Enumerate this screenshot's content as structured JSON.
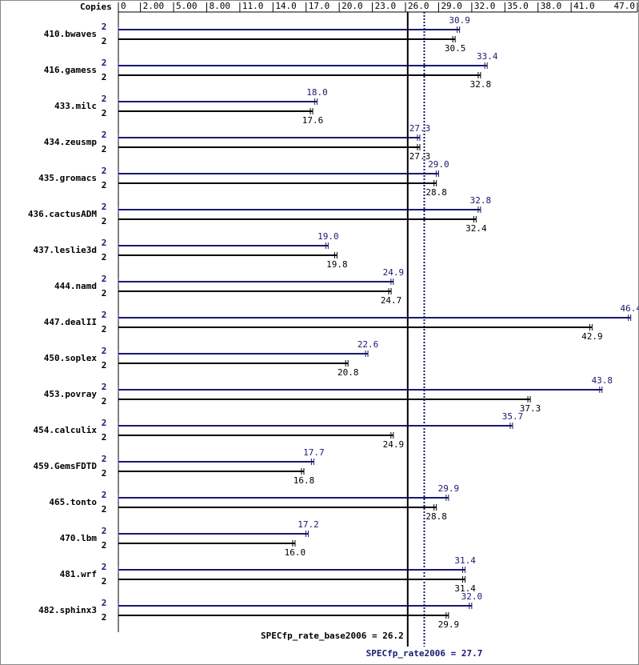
{
  "chart_data": {
    "type": "bar",
    "orientation": "horizontal",
    "copies_label": "Copies",
    "categories": [
      "410.bwaves",
      "416.gamess",
      "433.milc",
      "434.zeusmp",
      "435.gromacs",
      "436.cactusADM",
      "437.leslie3d",
      "444.namd",
      "447.dealII",
      "450.soplex",
      "453.povray",
      "454.calculix",
      "459.GemsFDTD",
      "465.tonto",
      "470.lbm",
      "481.wrf",
      "482.sphinx3"
    ],
    "series": [
      {
        "color": "#191970",
        "copies": [
          2,
          2,
          2,
          2,
          2,
          2,
          2,
          2,
          2,
          2,
          2,
          2,
          2,
          2,
          2,
          2,
          2
        ],
        "values": [
          30.9,
          33.4,
          18.0,
          27.3,
          29.0,
          32.8,
          19.0,
          24.9,
          46.4,
          22.6,
          43.8,
          35.7,
          17.7,
          29.9,
          17.2,
          31.4,
          32.0
        ],
        "value_labels": [
          "30.9",
          "33.4",
          "18.0",
          "27.3",
          "29.0",
          "32.8",
          "19.0",
          "24.9",
          "46.4",
          "22.6",
          "43.8",
          "35.7",
          "17.7",
          "29.9",
          "17.2",
          "31.4",
          "32.0"
        ]
      },
      {
        "color": "#000000",
        "copies": [
          2,
          2,
          2,
          2,
          2,
          2,
          2,
          2,
          2,
          2,
          2,
          2,
          2,
          2,
          2,
          2,
          2
        ],
        "values": [
          30.5,
          32.8,
          17.6,
          27.3,
          28.8,
          32.4,
          19.8,
          24.7,
          42.9,
          20.8,
          37.3,
          24.9,
          16.8,
          28.8,
          16.0,
          31.4,
          29.9
        ],
        "value_labels": [
          "30.5",
          "32.8",
          "17.6",
          "27.3",
          "28.8",
          "32.4",
          "19.8",
          "24.7",
          "42.9",
          "20.8",
          "37.3",
          "24.9",
          "16.8",
          "28.8",
          "16.0",
          "31.4",
          "29.9"
        ]
      }
    ],
    "xlim": [
      0,
      47.0
    ],
    "xticks": [
      0,
      {
        "value": 2,
        "label": "2.00"
      },
      {
        "value": 5,
        "label": "5.00"
      },
      {
        "value": 8,
        "label": "8.00"
      },
      {
        "value": 11,
        "label": "11.0"
      },
      {
        "value": 14,
        "label": "14.0"
      },
      {
        "value": 17,
        "label": "17.0"
      },
      {
        "value": 20,
        "label": "20.0"
      },
      {
        "value": 23,
        "label": "23.0"
      },
      {
        "value": 26,
        "label": "26.0"
      },
      {
        "value": 29,
        "label": "29.0"
      },
      {
        "value": 32,
        "label": "32.0"
      },
      {
        "value": 35,
        "label": "35.0"
      },
      {
        "value": 38,
        "label": "38.0"
      },
      {
        "value": 41,
        "label": "41.0"
      },
      {
        "value": 47,
        "label": "47.0"
      }
    ],
    "reference_lines": [
      {
        "label": "SPECfp_rate_base2006 = 26.2",
        "value": 26.2,
        "color": "#000000",
        "style": "solid"
      },
      {
        "label": "SPECfp_rate2006 = 27.7",
        "value": 27.7,
        "color": "#191970",
        "style": "dotted"
      }
    ]
  }
}
